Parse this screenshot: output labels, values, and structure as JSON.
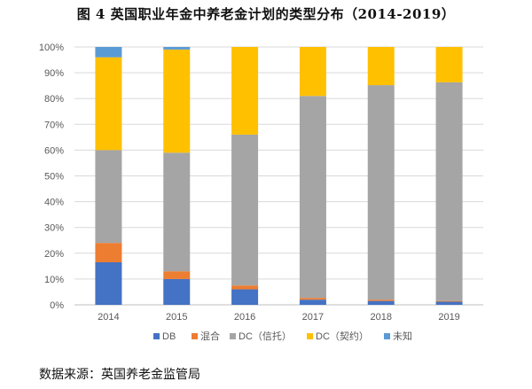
{
  "title": "图 4  英国职业年金中养老金计划的类型分布（2014-2019）",
  "source": "数据来源：英国养老金监管局",
  "chart_data": {
    "type": "bar",
    "stacked": true,
    "percent": true,
    "categories": [
      "2014",
      "2015",
      "2016",
      "2017",
      "2018",
      "2019"
    ],
    "series": [
      {
        "name": "DB",
        "color": "#4472C4",
        "values": [
          16.5,
          10.0,
          6.0,
          2.0,
          1.5,
          1.2
        ]
      },
      {
        "name": "混合",
        "color": "#ED7D31",
        "values": [
          7.5,
          3.0,
          1.5,
          0.7,
          0.5,
          0.3
        ]
      },
      {
        "name": "DC（信托）",
        "color": "#A5A5A5",
        "values": [
          36.0,
          46.0,
          58.5,
          78.3,
          83.2,
          84.8
        ]
      },
      {
        "name": "DC（契约）",
        "color": "#FFC000",
        "values": [
          36.0,
          40.0,
          34.0,
          19.0,
          14.8,
          13.7
        ]
      },
      {
        "name": "未知",
        "color": "#5B9BD5",
        "values": [
          4.0,
          1.0,
          0.0,
          0.0,
          0.0,
          0.0
        ]
      }
    ],
    "yticks": [
      "0%",
      "10%",
      "20%",
      "30%",
      "40%",
      "50%",
      "60%",
      "70%",
      "80%",
      "90%",
      "100%"
    ],
    "ylim": [
      0,
      100
    ],
    "grid": true,
    "legend": "bottom"
  }
}
